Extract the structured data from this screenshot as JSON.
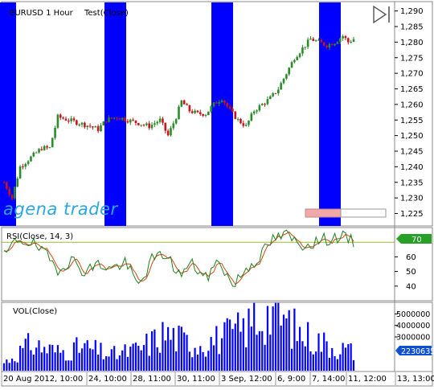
{
  "window": {
    "instrument_title": "EURUSD 1 Hour",
    "indicator_title": "Test(Close)"
  },
  "brand": {
    "logo_text": "agena trader"
  },
  "colors": {
    "highlight": "#0000ff",
    "up_candle": "#2a8c2a",
    "down_candle": "#c8151b",
    "rsi_line": "#208020",
    "rsi_signal": "#d04a14",
    "level_line": "#9aba34",
    "volume": "#0000ff",
    "axis_text": "#000000",
    "value_badge_rsi": "#28a028",
    "value_badge_vol": "#1050d0"
  },
  "panels": {
    "price": {
      "yticks": [
        "1,290",
        "1,285",
        "1,280",
        "1,275",
        "1,270",
        "1,265",
        "1,260",
        "1,255",
        "1,250",
        "1,245",
        "1,240",
        "1,235",
        "1,230",
        "1,225"
      ]
    },
    "rsi": {
      "title": "RSI(Close, 14, 3)",
      "yticks": [
        "60",
        "50",
        "40"
      ],
      "current_value": "70"
    },
    "volume": {
      "title": "VOL(Close)",
      "yticks": [
        "5000000",
        "4000000",
        "3000000"
      ],
      "current_value": "2230635"
    }
  },
  "time_axis": {
    "labels": [
      "20 Aug 2012, 10:00",
      "24, 10:00",
      "28, 11:00",
      "30, 11:00",
      "3 Sep, 12:00",
      "6, 9:00",
      "7, 14:00",
      "11, 12:00",
      "13, 13:00"
    ]
  },
  "icons": {
    "play": "play-end-icon"
  },
  "chart_data": [
    {
      "type": "candlestick",
      "title": "EURUSD 1 Hour",
      "ylim": [
        1.221,
        1.293
      ],
      "approx_close_path": [
        [
          0,
          1.235
        ],
        [
          3,
          1.23
        ],
        [
          6,
          1.24
        ],
        [
          10,
          1.243
        ],
        [
          14,
          1.246
        ],
        [
          17,
          1.246
        ],
        [
          20,
          1.256
        ],
        [
          24,
          1.255
        ],
        [
          28,
          1.254
        ],
        [
          32,
          1.253
        ],
        [
          35,
          1.252
        ],
        [
          38,
          1.255
        ],
        [
          42,
          1.256
        ],
        [
          46,
          1.255
        ],
        [
          50,
          1.254
        ],
        [
          54,
          1.253
        ],
        [
          58,
          1.255
        ],
        [
          61,
          1.25
        ],
        [
          64,
          1.256
        ],
        [
          66,
          1.261
        ],
        [
          69,
          1.258
        ],
        [
          72,
          1.257
        ],
        [
          75,
          1.257
        ],
        [
          78,
          1.26
        ],
        [
          81,
          1.262
        ],
        [
          84,
          1.258
        ],
        [
          87,
          1.255
        ],
        [
          90,
          1.253
        ],
        [
          93,
          1.258
        ],
        [
          96,
          1.26
        ],
        [
          99,
          1.262
        ],
        [
          102,
          1.265
        ],
        [
          105,
          1.27
        ],
        [
          108,
          1.275
        ],
        [
          111,
          1.278
        ],
        [
          114,
          1.281
        ],
        [
          117,
          1.28
        ],
        [
          120,
          1.279
        ],
        [
          123,
          1.28
        ],
        [
          126,
          1.282
        ],
        [
          128,
          1.28
        ],
        [
          130,
          1.281
        ]
      ]
    },
    {
      "type": "line",
      "title": "RSI(Close, 14, 3)",
      "ylim": [
        30,
        80
      ],
      "level": 70,
      "approx_path": [
        [
          0,
          60
        ],
        [
          5,
          72
        ],
        [
          10,
          70
        ],
        [
          15,
          62
        ],
        [
          20,
          52
        ],
        [
          25,
          58
        ],
        [
          30,
          50
        ],
        [
          35,
          55
        ],
        [
          40,
          52
        ],
        [
          45,
          56
        ],
        [
          50,
          40
        ],
        [
          55,
          58
        ],
        [
          60,
          62
        ],
        [
          65,
          48
        ],
        [
          70,
          55
        ],
        [
          75,
          45
        ],
        [
          80,
          58
        ],
        [
          85,
          40
        ],
        [
          90,
          52
        ],
        [
          95,
          60
        ],
        [
          100,
          72
        ],
        [
          105,
          75
        ],
        [
          110,
          68
        ],
        [
          115,
          70
        ],
        [
          120,
          72
        ],
        [
          125,
          74
        ],
        [
          130,
          70
        ]
      ]
    },
    {
      "type": "bar",
      "title": "VOL(Close)",
      "ylim": [
        0,
        6000000
      ],
      "approx_profile": [
        [
          0,
          800000
        ],
        [
          10,
          2500000
        ],
        [
          20,
          1800000
        ],
        [
          30,
          2200000
        ],
        [
          40,
          1500000
        ],
        [
          50,
          2000000
        ],
        [
          60,
          3500000
        ],
        [
          70,
          2500000
        ],
        [
          80,
          3000000
        ],
        [
          90,
          4000000
        ],
        [
          100,
          5500000
        ],
        [
          110,
          3500000
        ],
        [
          120,
          2500000
        ],
        [
          130,
          1800000
        ]
      ]
    }
  ]
}
